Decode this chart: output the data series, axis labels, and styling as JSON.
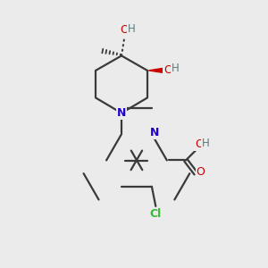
{
  "bg_color": "#ebebeb",
  "bond_color": "#3a3a3a",
  "N_color": "#2200cc",
  "O_color": "#cc0000",
  "Cl_color": "#33bb33",
  "H_color": "#5a7a7a",
  "bond_width": 1.6,
  "figsize": [
    3.0,
    3.0
  ],
  "dpi": 100,
  "xlim": [
    0,
    10
  ],
  "ylim": [
    0,
    10
  ]
}
